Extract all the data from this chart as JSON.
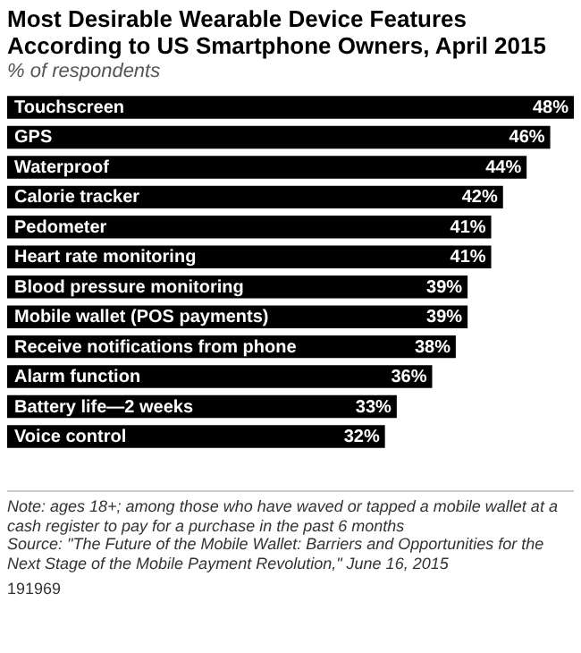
{
  "chart_data": {
    "type": "bar",
    "orientation": "horizontal",
    "title": "Most Desirable Wearable Device Features According to US Smartphone Owners, April 2015",
    "subtitle": "% of respondents",
    "categories": [
      "Touchscreen",
      "GPS",
      "Waterproof",
      "Calorie tracker",
      "Pedometer",
      "Heart rate monitoring",
      "Blood pressure monitoring",
      "Mobile wallet (POS payments)",
      "Receive notifications from phone",
      "Alarm function",
      "Battery life—2 weeks",
      "Voice control"
    ],
    "values": [
      48,
      46,
      44,
      42,
      41,
      41,
      39,
      39,
      38,
      36,
      33,
      32
    ],
    "value_labels": [
      "48%",
      "46%",
      "44%",
      "42%",
      "41%",
      "41%",
      "39%",
      "39%",
      "38%",
      "36%",
      "33%",
      "32%"
    ],
    "color": "#000000",
    "annotations": [
      "Note: ages 18+; among those who have waved or tapped a mobile wallet at a cash register to pay for a purchase in the past 6 months",
      "Source: \"The Future of the Mobile Wallet: Barriers and Opportunities for the Next Stage of the Mobile Payment Revolution,\" June 16, 2015",
      "191969"
    ]
  }
}
